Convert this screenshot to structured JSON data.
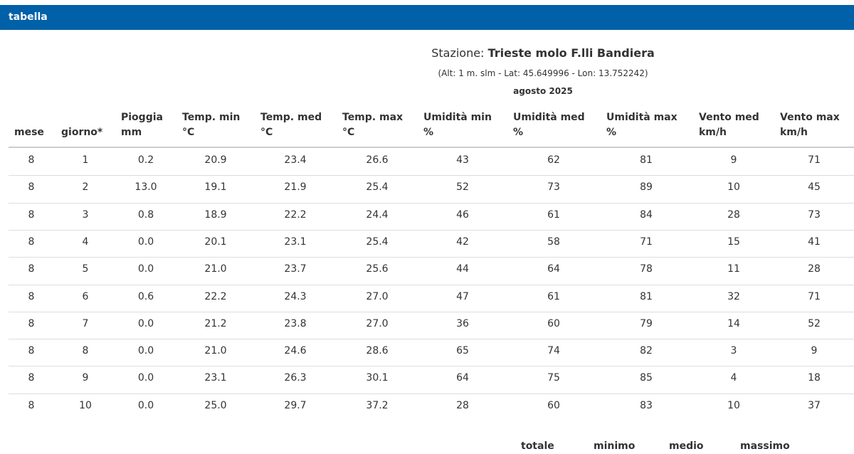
{
  "header": {
    "title": "tabella"
  },
  "station": {
    "label": "Stazione:",
    "name": "Trieste molo F.lli Bandiera",
    "coords": "(Alt: 1 m. slm - Lat: 45.649996 - Lon: 13.752242)",
    "period": "agosto 2025"
  },
  "table": {
    "columns": [
      [
        "mese"
      ],
      [
        "giorno*"
      ],
      [
        "Pioggia",
        "mm"
      ],
      [
        "Temp. min",
        "°C"
      ],
      [
        "Temp. med",
        "°C"
      ],
      [
        "Temp. max",
        "°C"
      ],
      [
        "Umidità min",
        "%"
      ],
      [
        "Umidità med",
        "%"
      ],
      [
        "Umidità max",
        "%"
      ],
      [
        "Vento med",
        "km/h"
      ],
      [
        "Vento max",
        "km/h"
      ]
    ],
    "rows": [
      [
        "8",
        "1",
        "0.2",
        "20.9",
        "23.4",
        "26.6",
        "43",
        "62",
        "81",
        "9",
        "71"
      ],
      [
        "8",
        "2",
        "13.0",
        "19.1",
        "21.9",
        "25.4",
        "52",
        "73",
        "89",
        "10",
        "45"
      ],
      [
        "8",
        "3",
        "0.8",
        "18.9",
        "22.2",
        "24.4",
        "46",
        "61",
        "84",
        "28",
        "73"
      ],
      [
        "8",
        "4",
        "0.0",
        "20.1",
        "23.1",
        "25.4",
        "42",
        "58",
        "71",
        "15",
        "41"
      ],
      [
        "8",
        "5",
        "0.0",
        "21.0",
        "23.7",
        "25.6",
        "44",
        "64",
        "78",
        "11",
        "28"
      ],
      [
        "8",
        "6",
        "0.6",
        "22.2",
        "24.3",
        "27.0",
        "47",
        "61",
        "81",
        "32",
        "71"
      ],
      [
        "8",
        "7",
        "0.0",
        "21.2",
        "23.8",
        "27.0",
        "36",
        "60",
        "79",
        "14",
        "52"
      ],
      [
        "8",
        "8",
        "0.0",
        "21.0",
        "24.6",
        "28.6",
        "65",
        "74",
        "82",
        "3",
        "9"
      ],
      [
        "8",
        "9",
        "0.0",
        "23.1",
        "26.3",
        "30.1",
        "64",
        "75",
        "85",
        "4",
        "18"
      ],
      [
        "8",
        "10",
        "0.0",
        "25.0",
        "29.7",
        "37.2",
        "28",
        "60",
        "83",
        "10",
        "37"
      ]
    ]
  },
  "summary": {
    "columns": [
      "totale",
      "minimo",
      "medio",
      "massimo"
    ]
  }
}
